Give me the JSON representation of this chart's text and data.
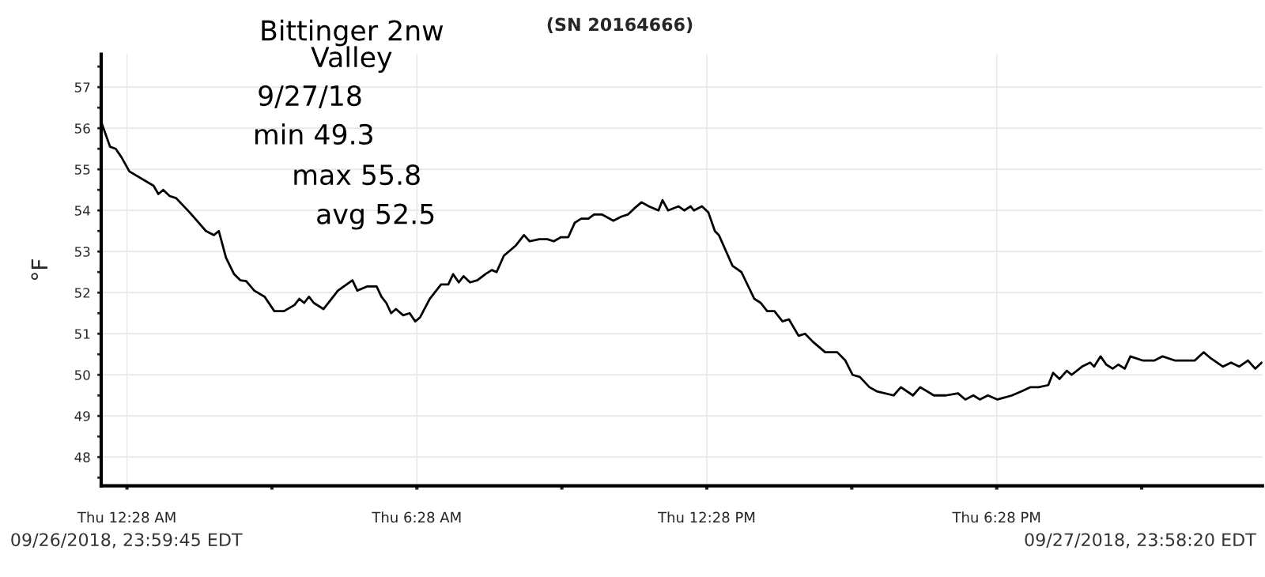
{
  "chart_data": {
    "type": "line",
    "subtitle": "(SN 20164666)",
    "ylabel": "°F",
    "annotations": [
      "Bittinger 2nw\nValley",
      "9/27/18",
      "min 49.3",
      "max 55.8",
      "avg 52.5",
      "09/26/2018, 23:59:45 EDT",
      "09/27/2018, 23:58:20 EDT"
    ],
    "x": [
      "2018-09-26T23:57",
      "2018-09-27T00:07",
      "2018-09-27T00:14",
      "2018-09-27T00:21",
      "2018-09-27T00:31",
      "2018-09-27T01:01",
      "2018-09-27T01:07",
      "2018-09-27T01:13",
      "2018-09-27T01:21",
      "2018-09-27T01:29",
      "2018-09-27T01:46",
      "2018-09-27T02:06",
      "2018-09-27T02:16",
      "2018-09-27T02:22",
      "2018-09-27T02:31",
      "2018-09-27T02:41",
      "2018-09-27T02:49",
      "2018-09-27T02:56",
      "2018-09-27T03:06",
      "2018-09-27T03:19",
      "2018-09-27T03:31",
      "2018-09-27T03:43",
      "2018-09-27T03:56",
      "2018-09-27T04:02",
      "2018-09-27T04:08",
      "2018-09-27T04:14",
      "2018-09-27T04:20",
      "2018-09-27T04:32",
      "2018-09-27T04:50",
      "2018-09-27T05:08",
      "2018-09-27T05:14",
      "2018-09-27T05:26",
      "2018-09-27T05:38",
      "2018-09-27T05:44",
      "2018-09-27T05:50",
      "2018-09-27T05:56",
      "2018-09-27T06:02",
      "2018-09-27T06:11",
      "2018-09-27T06:19",
      "2018-09-27T06:26",
      "2018-09-27T06:32",
      "2018-09-27T06:44",
      "2018-09-27T06:58",
      "2018-09-27T07:07",
      "2018-09-27T07:13",
      "2018-09-27T07:20",
      "2018-09-27T07:26",
      "2018-09-27T07:34",
      "2018-09-27T07:43",
      "2018-09-27T07:53",
      "2018-09-27T08:01",
      "2018-09-27T08:07",
      "2018-09-27T08:16",
      "2018-09-27T08:31",
      "2018-09-27T08:41",
      "2018-09-27T08:48",
      "2018-09-27T09:00",
      "2018-09-27T09:10",
      "2018-09-27T09:18",
      "2018-09-27T09:27",
      "2018-09-27T09:36",
      "2018-09-27T09:44",
      "2018-09-27T09:52",
      "2018-09-27T10:01",
      "2018-09-27T10:08",
      "2018-09-27T10:18",
      "2018-09-27T10:32",
      "2018-09-27T10:42",
      "2018-09-27T10:50",
      "2018-09-27T10:58",
      "2018-09-27T11:07",
      "2018-09-27T11:16",
      "2018-09-27T11:28",
      "2018-09-27T11:33",
      "2018-09-27T11:40",
      "2018-09-27T11:53",
      "2018-09-27T12:00",
      "2018-09-27T12:08",
      "2018-09-27T12:12",
      "2018-09-27T12:22",
      "2018-09-27T12:30",
      "2018-09-27T12:38",
      "2018-09-27T12:43",
      "2018-09-27T13:00",
      "2018-09-27T13:11",
      "2018-09-27T13:27",
      "2018-09-27T13:35",
      "2018-09-27T13:43",
      "2018-09-27T13:52",
      "2018-09-27T14:02",
      "2018-09-27T14:10",
      "2018-09-27T14:22",
      "2018-09-27T14:30",
      "2018-09-27T14:40",
      "2018-09-27T14:55",
      "2018-09-27T15:10",
      "2018-09-27T15:20",
      "2018-09-27T15:29",
      "2018-09-27T15:38",
      "2018-09-27T15:50",
      "2018-09-27T15:59",
      "2018-09-27T16:20",
      "2018-09-27T16:29",
      "2018-09-27T16:44",
      "2018-09-27T16:53",
      "2018-09-27T17:10",
      "2018-09-27T17:25",
      "2018-09-27T17:40",
      "2018-09-27T17:49",
      "2018-09-27T17:59",
      "2018-09-27T18:07",
      "2018-09-27T18:17",
      "2018-09-27T18:29",
      "2018-09-27T18:47",
      "2018-09-27T18:59",
      "2018-09-27T19:10",
      "2018-09-27T19:20",
      "2018-09-27T19:32",
      "2018-09-27T19:38",
      "2018-09-27T19:46",
      "2018-09-27T19:55",
      "2018-09-27T20:01",
      "2018-09-27T20:14",
      "2018-09-27T20:24",
      "2018-09-27T20:29",
      "2018-09-27T20:37",
      "2018-09-27T20:44",
      "2018-09-27T20:52",
      "2018-09-27T20:59",
      "2018-09-27T21:07",
      "2018-09-27T21:14",
      "2018-09-27T21:29",
      "2018-09-27T21:44",
      "2018-09-27T21:54",
      "2018-09-27T22:09",
      "2018-09-27T22:24",
      "2018-09-27T22:34",
      "2018-09-27T22:45",
      "2018-09-27T22:54",
      "2018-09-27T23:09",
      "2018-09-27T23:19",
      "2018-09-27T23:29",
      "2018-09-27T23:40",
      "2018-09-27T23:49",
      "2018-09-27T23:57"
    ],
    "series": [
      {
        "color": "#000000",
        "values": [
          56.1,
          55.55,
          55.5,
          55.3,
          54.95,
          54.6,
          54.4,
          54.5,
          54.35,
          54.3,
          53.95,
          53.5,
          53.4,
          53.5,
          52.85,
          52.45,
          52.3,
          52.28,
          52.05,
          51.9,
          51.55,
          51.55,
          51.7,
          51.85,
          51.75,
          51.9,
          51.75,
          51.6,
          52.05,
          52.3,
          52.05,
          52.15,
          52.15,
          51.9,
          51.75,
          51.5,
          51.6,
          51.45,
          51.5,
          51.3,
          51.4,
          51.85,
          52.2,
          52.2,
          52.45,
          52.25,
          52.4,
          52.25,
          52.3,
          52.45,
          52.55,
          52.5,
          52.9,
          53.15,
          53.4,
          53.25,
          53.3,
          53.3,
          53.25,
          53.35,
          53.35,
          53.7,
          53.8,
          53.8,
          53.9,
          53.9,
          53.75,
          53.85,
          53.9,
          54.05,
          54.2,
          54.1,
          54.0,
          54.25,
          54.0,
          54.1,
          54.0,
          54.1,
          54.0,
          54.1,
          53.95,
          53.5,
          53.4,
          52.65,
          52.5,
          51.85,
          51.75,
          51.55,
          51.55,
          51.3,
          51.35,
          50.95,
          51.0,
          50.8,
          50.55,
          50.55,
          50.35,
          50.0,
          49.95,
          49.7,
          49.6,
          49.5,
          49.7,
          49.5,
          49.7,
          49.5,
          49.5,
          49.55,
          49.4,
          49.5,
          49.4,
          49.5,
          49.4,
          49.5,
          49.6,
          49.7,
          49.7,
          49.75,
          50.05,
          49.9,
          50.1,
          50.0,
          50.2,
          50.3,
          50.2,
          50.45,
          50.25,
          50.15,
          50.25,
          50.15,
          50.45,
          50.35,
          50.35,
          50.45,
          50.35,
          50.35,
          50.35,
          50.55,
          50.4,
          50.2,
          50.3,
          50.2,
          50.35,
          50.15,
          50.3
        ]
      }
    ],
    "xlim": [
      "2018-09-26T23:56",
      "2018-09-27T23:58"
    ],
    "xticks": [
      {
        "value": "2018-09-27T00:28",
        "label": "Thu 12:28 AM"
      },
      {
        "value": "2018-09-27T03:28",
        "label": null
      },
      {
        "value": "2018-09-27T06:28",
        "label": "Thu 6:28 AM"
      },
      {
        "value": "2018-09-27T09:28",
        "label": null
      },
      {
        "value": "2018-09-27T12:28",
        "label": "Thu 12:28 PM"
      },
      {
        "value": "2018-09-27T15:28",
        "label": null
      },
      {
        "value": "2018-09-27T18:28",
        "label": "Thu 6:28 PM"
      },
      {
        "value": "2018-09-27T21:28",
        "label": null
      }
    ],
    "ylim": [
      47.3,
      57.8
    ],
    "yticks": [
      {
        "value": 47.5,
        "label": null
      },
      48,
      {
        "value": 48.5,
        "label": null
      },
      49,
      {
        "value": 49.5,
        "label": null
      },
      50,
      {
        "value": 50.5,
        "label": null
      },
      51,
      {
        "value": 51.5,
        "label": null
      },
      52,
      {
        "value": 52.5,
        "label": null
      },
      53,
      {
        "value": 53.5,
        "label": null
      },
      54,
      {
        "value": 54.5,
        "label": null
      },
      55,
      {
        "value": 55.5,
        "label": null
      },
      56,
      {
        "value": 56.5,
        "label": null
      },
      57,
      {
        "value": 57.5,
        "label": null
      }
    ],
    "grid": true,
    "marker": "none",
    "line_style": "solid"
  }
}
